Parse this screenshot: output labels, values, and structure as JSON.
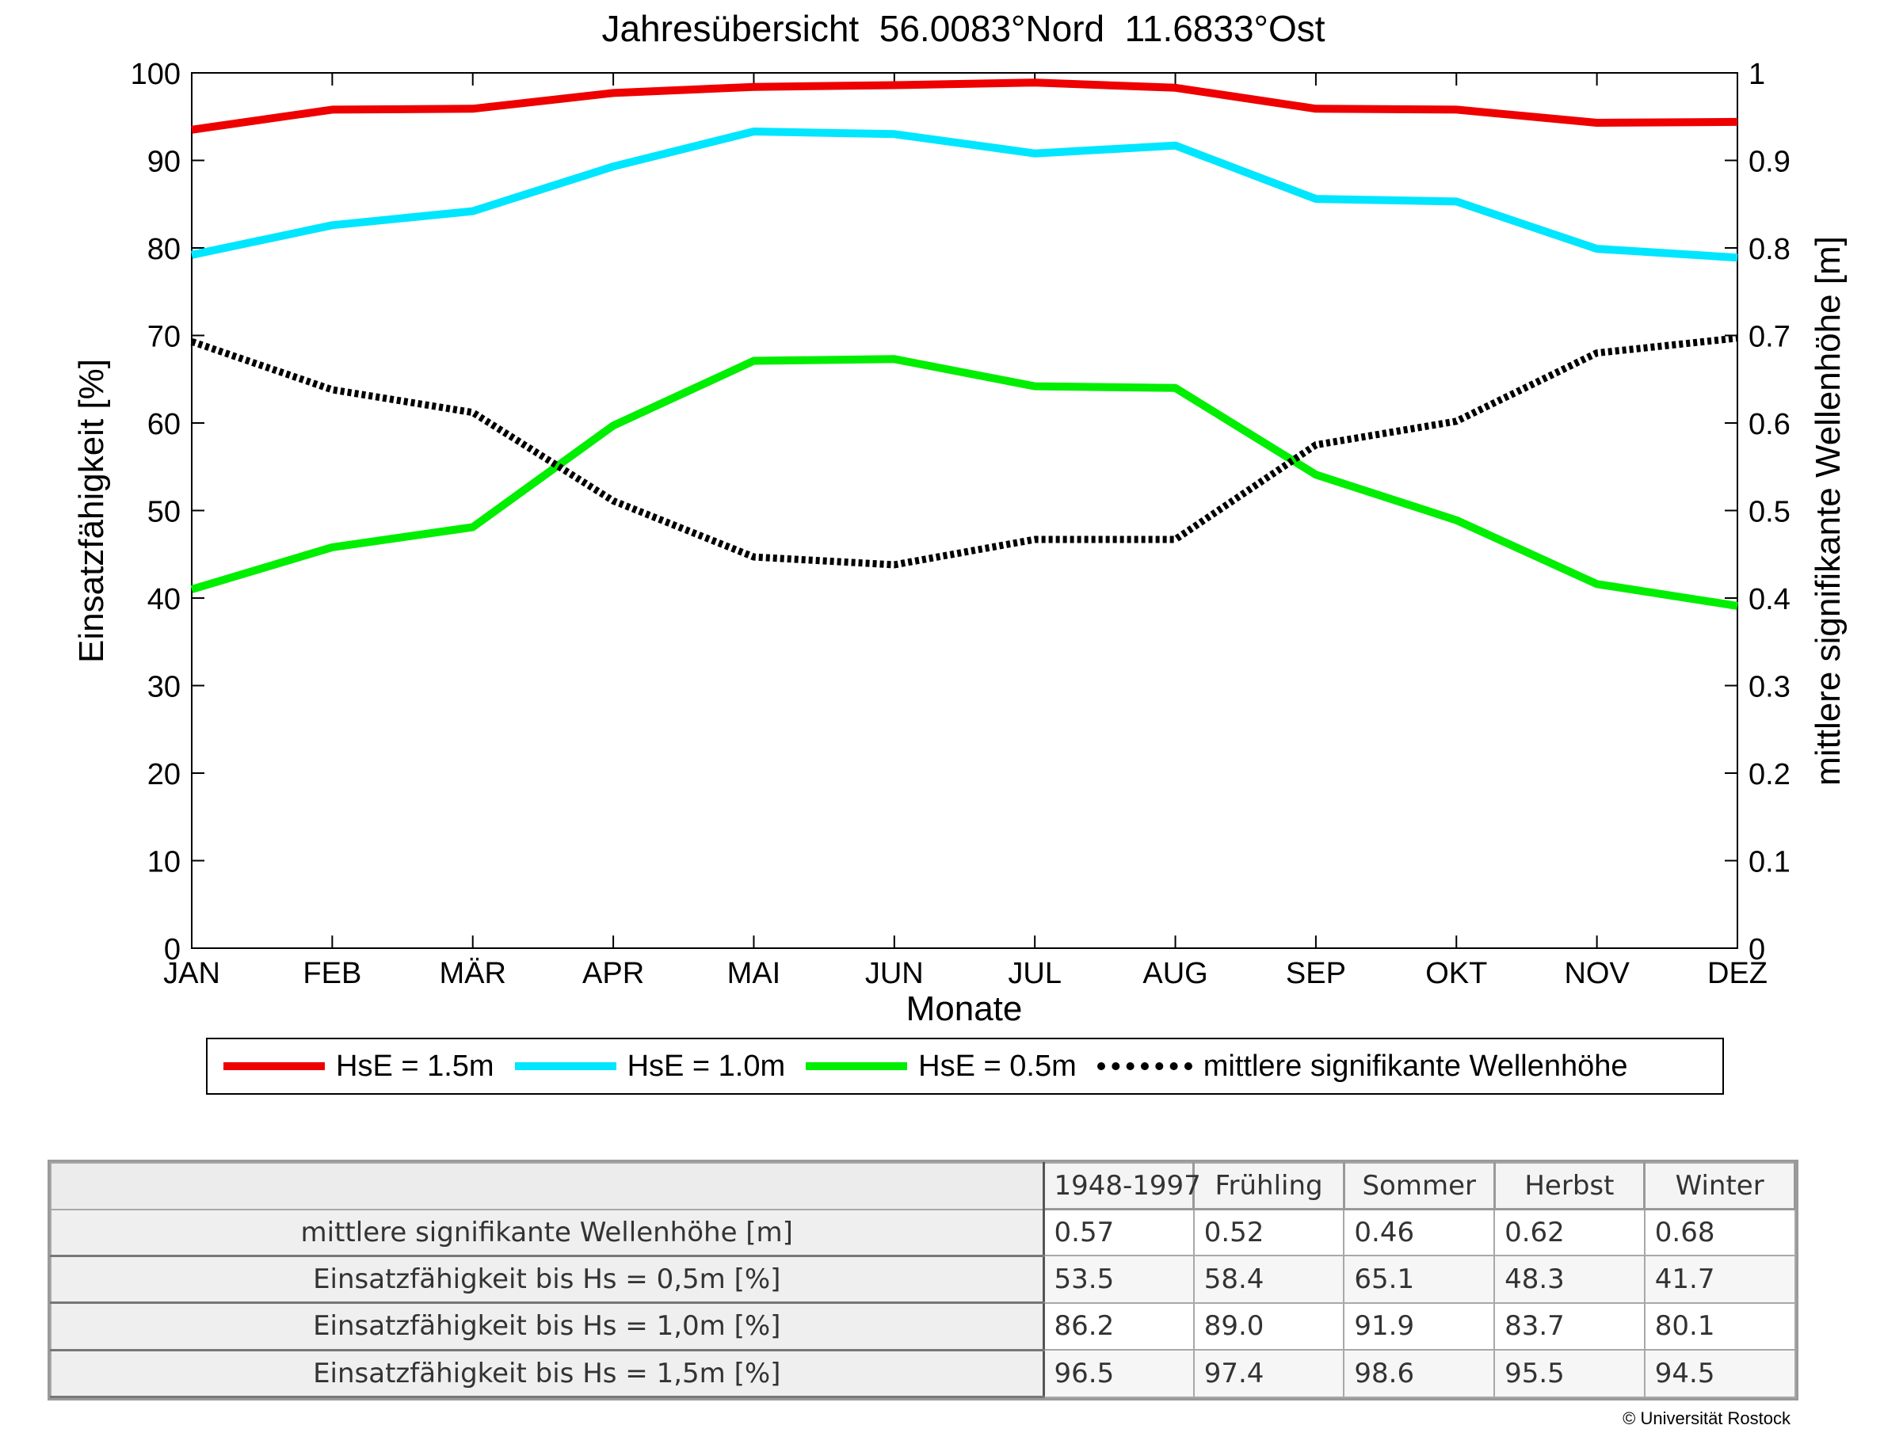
{
  "chart_data": {
    "type": "line",
    "title": "Jahresübersicht  56.0083°Nord  11.6833°Ost",
    "xlabel": "Monate",
    "ylabel": "Einsatzfähigkeit [%]",
    "y2label": "mittlere signifikante Wellenhöhe [m]",
    "categories": [
      "JAN",
      "FEB",
      "MÄR",
      "APR",
      "MAI",
      "JUN",
      "JUL",
      "AUG",
      "SEP",
      "OKT",
      "NOV",
      "DEZ"
    ],
    "ylim": [
      0,
      100
    ],
    "y2lim": [
      0,
      1
    ],
    "yticks": [
      "0",
      "10",
      "20",
      "30",
      "40",
      "50",
      "60",
      "70",
      "80",
      "90",
      "100"
    ],
    "y2ticks": [
      "0",
      "0.1",
      "0.2",
      "0.3",
      "0.4",
      "0.5",
      "0.6",
      "0.7",
      "0.8",
      "0.9",
      "1"
    ],
    "grid": false,
    "legend_position": "bottom",
    "series": [
      {
        "name": "HsE = 1.5m",
        "axis": "left",
        "color": "#ee0000",
        "style": "solid",
        "values": [
          93.5,
          95.8,
          95.9,
          97.7,
          98.4,
          98.6,
          98.9,
          98.3,
          95.9,
          95.8,
          94.3,
          94.4
        ]
      },
      {
        "name": "HsE = 1.0m",
        "axis": "left",
        "color": "#00e6ff",
        "style": "solid",
        "values": [
          79.2,
          82.6,
          84.2,
          89.3,
          93.3,
          93.0,
          90.8,
          91.7,
          85.6,
          85.3,
          79.9,
          78.9
        ]
      },
      {
        "name": "HsE = 0.5m",
        "axis": "left",
        "color": "#00ee00",
        "style": "solid",
        "values": [
          41.0,
          45.8,
          48.1,
          59.7,
          67.1,
          67.3,
          64.2,
          64.0,
          54.1,
          48.9,
          41.6,
          39.1
        ]
      },
      {
        "name": "mittlere signifikante Wellenhöhe",
        "axis": "right",
        "color": "#000000",
        "style": "dotted",
        "values": [
          0.693,
          0.638,
          0.612,
          0.511,
          0.447,
          0.438,
          0.467,
          0.467,
          0.575,
          0.602,
          0.68,
          0.697
        ]
      }
    ]
  },
  "stats_table": {
    "columns": [
      "1948-1997",
      "Frühling",
      "Sommer",
      "Herbst",
      "Winter"
    ],
    "rows": [
      {
        "label": "mittlere signifikante Wellenhöhe [m]",
        "values": [
          "0.57",
          "0.52",
          "0.46",
          "0.62",
          "0.68"
        ]
      },
      {
        "label": "Einsatzfähigkeit bis Hs = 0,5m [%]",
        "values": [
          "53.5",
          "58.4",
          "65.1",
          "48.3",
          "41.7"
        ]
      },
      {
        "label": "Einsatzfähigkeit bis Hs = 1,0m [%]",
        "values": [
          "86.2",
          "89.0",
          "91.9",
          "83.7",
          "80.1"
        ]
      },
      {
        "label": "Einsatzfähigkeit bis Hs = 1,5m [%]",
        "values": [
          "96.5",
          "97.4",
          "98.6",
          "95.5",
          "94.5"
        ]
      }
    ]
  },
  "copyright": "© Universität Rostock"
}
